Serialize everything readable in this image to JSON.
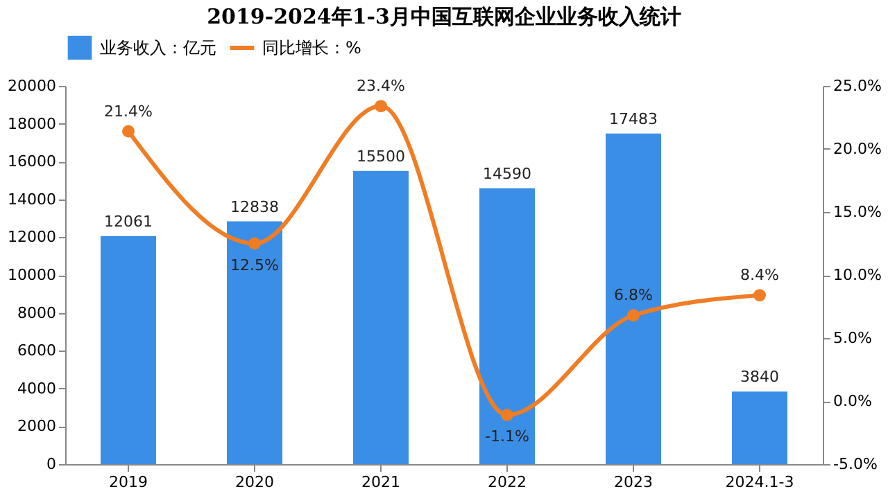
{
  "chart_data": {
    "type": "bar",
    "title": "2019-2024年1-3月中国互联网企业业务收入统计",
    "categories": [
      "2019",
      "2020",
      "2021",
      "2022",
      "2023",
      "2024.1-3"
    ],
    "series": [
      {
        "name": "业务收入：亿元",
        "color": "#3b8ee6",
        "values": [
          12061,
          12838,
          15500,
          14590,
          17483,
          3840
        ]
      },
      {
        "name": "同比增长：%",
        "type": "line",
        "axis": "y2",
        "color": "#f07d24",
        "marker": "circle",
        "values": [
          21.4,
          12.5,
          23.4,
          -1.1,
          6.8,
          8.4
        ],
        "value_labels": [
          "21.4%",
          "12.5%",
          "23.4%",
          "-1.1%",
          "6.8%",
          "8.4%"
        ]
      }
    ],
    "data_labels": true,
    "ylim": [
      0,
      20000
    ],
    "yticks": [
      0,
      2000,
      4000,
      6000,
      8000,
      10000,
      12000,
      14000,
      16000,
      18000,
      20000
    ],
    "y2lim": [
      -5,
      25
    ],
    "y2ticks": [
      {
        "value": -5,
        "label": "-5.0%"
      },
      {
        "value": 0,
        "label": "0.0%"
      },
      {
        "value": 5,
        "label": "5.0%"
      },
      {
        "value": 10,
        "label": "10.0%"
      },
      {
        "value": 15,
        "label": "15.0%"
      },
      {
        "value": 20,
        "label": "20.0%"
      },
      {
        "value": 25,
        "label": "25.0%"
      }
    ],
    "grid": false,
    "legend": "top"
  }
}
